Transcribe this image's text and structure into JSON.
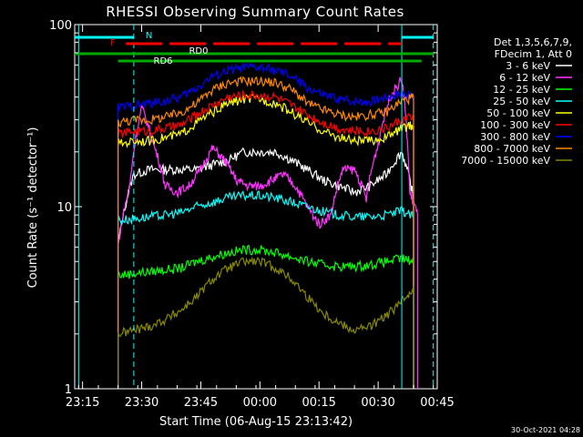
{
  "chart_data": {
    "type": "line",
    "title": "RHESSI Observing Summary Count Rates",
    "ylabel": "Count Rate (s⁻¹ detector⁻¹)",
    "xlabel": "Start Time (06-Aug-15 23:13:42)",
    "yscale": "log",
    "ylim": [
      1,
      100
    ],
    "yticks": [
      "1",
      "10",
      "100"
    ],
    "xlim_min": [
      -1,
      91
    ],
    "xticks": [
      {
        "label": "23:15",
        "min": 1
      },
      {
        "label": "23:30",
        "min": 16
      },
      {
        "label": "23:45",
        "min": 31
      },
      {
        "label": "00:00",
        "min": 46
      },
      {
        "label": "00:15",
        "min": 61
      },
      {
        "label": "00:30",
        "min": 76
      },
      {
        "label": "00:45",
        "min": 91
      }
    ],
    "legend_header": [
      "Det 1,3,5,6,7,9,",
      "FDecim 1, Att 0"
    ],
    "legend_position": "right",
    "series": [
      {
        "name": "3 - 6 keV",
        "color": "#ffffff",
        "x": [
          10,
          14,
          18,
          22,
          26,
          30,
          34,
          38,
          42,
          46,
          50,
          54,
          58,
          62,
          66,
          70,
          74,
          78,
          82,
          85
        ],
        "y": [
          6,
          15,
          16,
          16,
          16,
          16,
          17,
          18,
          20,
          20,
          20,
          18,
          16,
          14,
          13,
          12,
          13,
          15,
          20,
          11
        ]
      },
      {
        "name": "6 - 12 keV",
        "color": "#ff33ff",
        "x": [
          10,
          13,
          16,
          19,
          22,
          25,
          28,
          31,
          34,
          37,
          40,
          43,
          46,
          49,
          52,
          55,
          58,
          61,
          64,
          67,
          70,
          73,
          76,
          79,
          82,
          84,
          86
        ],
        "y": [
          6,
          13,
          35,
          22,
          13,
          12,
          13,
          16,
          21,
          18,
          14,
          13,
          13,
          14,
          15,
          13,
          10,
          8,
          9,
          16,
          16,
          11,
          22,
          40,
          50,
          12,
          9
        ]
      },
      {
        "name": "12 - 25 keV",
        "color": "#00ff00",
        "x": [
          10,
          14,
          18,
          22,
          26,
          30,
          34,
          38,
          42,
          46,
          50,
          54,
          58,
          62,
          66,
          70,
          74,
          78,
          82,
          85
        ],
        "y": [
          4.2,
          4.3,
          4.4,
          4.5,
          4.6,
          5.0,
          5.3,
          5.6,
          5.8,
          5.8,
          5.6,
          5.3,
          5.0,
          4.8,
          4.7,
          4.7,
          4.8,
          5.0,
          5.2,
          5.0
        ]
      },
      {
        "name": "25 - 50 keV",
        "color": "#00ffff",
        "x": [
          10,
          14,
          18,
          22,
          26,
          30,
          34,
          38,
          42,
          46,
          50,
          54,
          58,
          62,
          66,
          70,
          74,
          78,
          82,
          85
        ],
        "y": [
          8.4,
          8.6,
          8.8,
          9.0,
          9.3,
          10.0,
          10.6,
          11.2,
          11.5,
          11.5,
          11.2,
          10.6,
          10.0,
          9.4,
          9.0,
          8.8,
          8.8,
          9.0,
          9.5,
          8.8
        ]
      },
      {
        "name": "50 - 100 keV",
        "color": "#ffff00",
        "x": [
          10,
          14,
          18,
          22,
          26,
          30,
          34,
          38,
          42,
          46,
          50,
          54,
          58,
          62,
          66,
          70,
          74,
          78,
          82,
          85
        ],
        "y": [
          22,
          23,
          23,
          24,
          25,
          29,
          33,
          37,
          39,
          39,
          37,
          33,
          29,
          26,
          24,
          23,
          23,
          24,
          27,
          28
        ]
      },
      {
        "name": "100 - 300 keV",
        "color": "#ff0000",
        "x": [
          10,
          14,
          18,
          22,
          26,
          30,
          34,
          38,
          42,
          46,
          50,
          54,
          58,
          62,
          66,
          70,
          74,
          78,
          82,
          85
        ],
        "y": [
          25,
          26,
          26,
          27,
          28,
          32,
          36,
          40,
          41,
          41,
          40,
          36,
          32,
          29,
          27,
          26,
          26,
          27,
          30,
          31
        ]
      },
      {
        "name": "300 - 800 keV",
        "color": "#0000ff",
        "x": [
          10,
          14,
          18,
          22,
          26,
          30,
          34,
          38,
          42,
          46,
          50,
          54,
          58,
          62,
          66,
          70,
          74,
          78,
          82,
          85
        ],
        "y": [
          35,
          36,
          37,
          38,
          40,
          45,
          52,
          56,
          58,
          58,
          56,
          52,
          45,
          41,
          39,
          38,
          38,
          40,
          42,
          40
        ]
      },
      {
        "name": "800 - 7000 keV",
        "color": "#ff8800",
        "x": [
          10,
          14,
          18,
          22,
          26,
          30,
          34,
          38,
          42,
          46,
          50,
          54,
          58,
          62,
          66,
          70,
          74,
          78,
          82,
          85
        ],
        "y": [
          29,
          30,
          30,
          31,
          33,
          37,
          44,
          48,
          49,
          49,
          48,
          44,
          37,
          34,
          32,
          31,
          32,
          33,
          38,
          40
        ]
      },
      {
        "name": "7000 - 15000 keV",
        "color": "#888800",
        "x": [
          10,
          14,
          18,
          22,
          26,
          30,
          34,
          38,
          42,
          46,
          50,
          54,
          58,
          62,
          66,
          70,
          74,
          78,
          82,
          85
        ],
        "y": [
          2.0,
          2.1,
          2.2,
          2.4,
          2.7,
          3.2,
          4.0,
          4.6,
          5.0,
          5.0,
          4.6,
          4.0,
          3.2,
          2.6,
          2.3,
          2.1,
          2.2,
          2.5,
          3.0,
          3.6
        ]
      }
    ],
    "annotations": [
      {
        "text": "F",
        "color": "#ff0000"
      },
      {
        "text": "N",
        "color": "#00ffff"
      },
      {
        "text": "RD6",
        "color": "#ffffff"
      },
      {
        "text": "RD0",
        "color": "#ffffff"
      }
    ],
    "timestamp": "30-Oct-2021 04:28"
  }
}
